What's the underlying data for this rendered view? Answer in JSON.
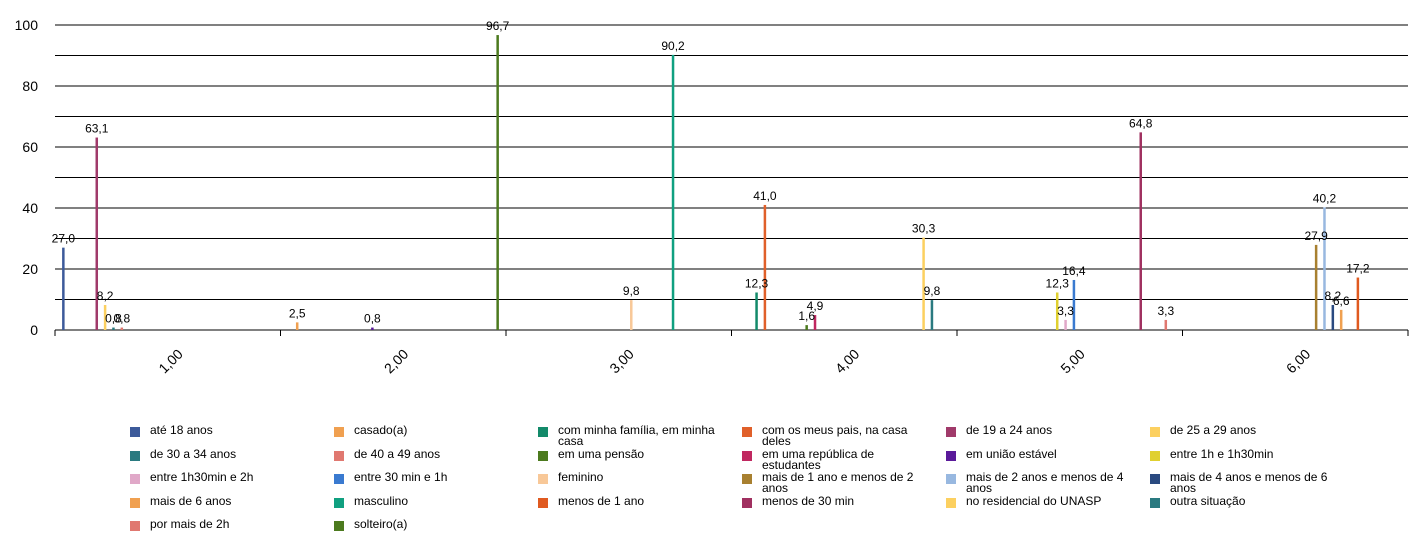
{
  "chart_data": {
    "type": "bar",
    "title": "",
    "xlabel": "",
    "ylabel": "",
    "ylim": [
      0,
      100
    ],
    "yticks": [
      0,
      20,
      40,
      60,
      80,
      100
    ],
    "categories": [
      "1,00",
      "2,00",
      "3,00",
      "4,00",
      "5,00",
      "6,00"
    ],
    "legend_position": "bottom",
    "series": [
      {
        "name": "até 18 anos",
        "color": "#3c5a9a",
        "values": [
          27.0,
          null,
          null,
          null,
          null,
          null
        ]
      },
      {
        "name": "casado(a)",
        "color": "#f0a050",
        "values": [
          null,
          2.5,
          null,
          null,
          null,
          null
        ]
      },
      {
        "name": "com minha família, em minha casa",
        "color": "#138a6a",
        "values": [
          null,
          null,
          null,
          12.3,
          null,
          null
        ]
      },
      {
        "name": "com os meus pais, na casa deles",
        "color": "#e0602a",
        "values": [
          null,
          null,
          null,
          41.0,
          null,
          null
        ]
      },
      {
        "name": "de 19 a 24 anos",
        "color": "#a03a6a",
        "values": [
          63.1,
          null,
          null,
          null,
          null,
          null
        ]
      },
      {
        "name": "de 25 a 29 anos",
        "color": "#fcd060",
        "values": [
          8.2,
          null,
          null,
          null,
          null,
          null
        ]
      },
      {
        "name": "de 30 a 34 anos",
        "color": "#2a7a80",
        "values": [
          0.8,
          null,
          null,
          null,
          null,
          null
        ]
      },
      {
        "name": "de 40 a 49 anos",
        "color": "#e07870",
        "values": [
          0.8,
          null,
          null,
          null,
          null,
          null
        ]
      },
      {
        "name": "em uma pensão",
        "color": "#4c7a1e",
        "values": [
          null,
          null,
          null,
          1.6,
          null,
          null
        ]
      },
      {
        "name": "em uma república de estudantes",
        "color": "#c02860",
        "values": [
          null,
          null,
          null,
          4.9,
          null,
          null
        ]
      },
      {
        "name": "em união estável",
        "color": "#5a1a9a",
        "values": [
          null,
          0.8,
          null,
          null,
          null,
          null
        ]
      },
      {
        "name": "entre 1h e 1h30min",
        "color": "#e0d030",
        "values": [
          null,
          null,
          null,
          null,
          12.3,
          null
        ]
      },
      {
        "name": "entre 1h30min e 2h",
        "color": "#e0a8c8",
        "values": [
          null,
          null,
          null,
          null,
          3.3,
          null
        ]
      },
      {
        "name": "entre 30 min e 1h",
        "color": "#3a7ad0",
        "values": [
          null,
          null,
          null,
          null,
          16.4,
          null
        ]
      },
      {
        "name": "feminino",
        "color": "#f8c898",
        "values": [
          null,
          null,
          9.8,
          null,
          null,
          null
        ]
      },
      {
        "name": "mais de 1 ano e menos de 2 anos",
        "color": "#a88030",
        "values": [
          null,
          null,
          null,
          null,
          null,
          27.9
        ]
      },
      {
        "name": "mais de 2 anos e menos de 4 anos",
        "color": "#98b8e0",
        "values": [
          null,
          null,
          null,
          null,
          null,
          40.2
        ]
      },
      {
        "name": "mais de 4 anos e menos de 6 anos",
        "color": "#2a4a80",
        "values": [
          null,
          null,
          null,
          null,
          null,
          8.2
        ]
      },
      {
        "name": "mais de 6 anos",
        "color": "#f0a050",
        "values": [
          null,
          null,
          null,
          null,
          null,
          6.6
        ]
      },
      {
        "name": "masculino",
        "color": "#10a080",
        "values": [
          null,
          null,
          90.2,
          null,
          null,
          null
        ]
      },
      {
        "name": "menos de 1 ano",
        "color": "#e05a20",
        "values": [
          null,
          null,
          null,
          null,
          null,
          17.2
        ]
      },
      {
        "name": "menos de 30 min",
        "color": "#a03060",
        "values": [
          null,
          null,
          null,
          null,
          64.8,
          null
        ]
      },
      {
        "name": "no residencial do UNASP",
        "color": "#fcd060",
        "values": [
          null,
          null,
          null,
          30.3,
          null,
          null
        ]
      },
      {
        "name": "outra situação",
        "color": "#2a7a80",
        "values": [
          null,
          null,
          null,
          9.8,
          null,
          null
        ]
      },
      {
        "name": "por mais de 2h",
        "color": "#e07870",
        "values": [
          null,
          null,
          null,
          null,
          3.3,
          null
        ]
      },
      {
        "name": "solteiro(a)",
        "color": "#4c7a1e",
        "values": [
          null,
          96.7,
          null,
          null,
          null,
          null
        ]
      }
    ],
    "value_labels": [
      [
        "27,0",
        null,
        null,
        null,
        null,
        null
      ],
      [
        null,
        "2,5",
        null,
        null,
        null,
        null
      ],
      [
        null,
        null,
        null,
        "12,3",
        null,
        null
      ],
      [
        null,
        null,
        null,
        "41,0",
        null,
        null
      ],
      [
        "63,1",
        null,
        null,
        null,
        null,
        null
      ],
      [
        "8,2",
        null,
        null,
        null,
        null,
        null
      ],
      [
        "0,8",
        null,
        null,
        null,
        null,
        null
      ],
      [
        "0,8",
        null,
        null,
        null,
        null,
        null
      ],
      [
        null,
        null,
        null,
        "1,6",
        null,
        null
      ],
      [
        null,
        null,
        null,
        "4,9",
        null,
        null
      ],
      [
        null,
        "0,8",
        null,
        null,
        null,
        null
      ],
      [
        null,
        null,
        null,
        null,
        "12,3",
        null
      ],
      [
        null,
        null,
        null,
        null,
        "3,3",
        null
      ],
      [
        null,
        null,
        null,
        null,
        "16,4",
        null
      ],
      [
        null,
        null,
        "9,8",
        null,
        null,
        null
      ],
      [
        null,
        null,
        null,
        null,
        null,
        "27,9"
      ],
      [
        null,
        null,
        null,
        null,
        null,
        "40,2"
      ],
      [
        null,
        null,
        null,
        null,
        null,
        "8,2"
      ],
      [
        null,
        null,
        null,
        null,
        null,
        "6,6"
      ],
      [
        null,
        null,
        "90,2",
        null,
        null,
        null
      ],
      [
        null,
        null,
        null,
        null,
        null,
        "17,2"
      ],
      [
        null,
        null,
        null,
        null,
        "64,8",
        null
      ],
      [
        null,
        null,
        null,
        "30,3",
        null,
        null
      ],
      [
        null,
        null,
        null,
        "9,8",
        null,
        null
      ],
      [
        null,
        null,
        null,
        null,
        "3,3",
        null
      ],
      [
        null,
        "96,7",
        null,
        null,
        null,
        null
      ]
    ]
  }
}
